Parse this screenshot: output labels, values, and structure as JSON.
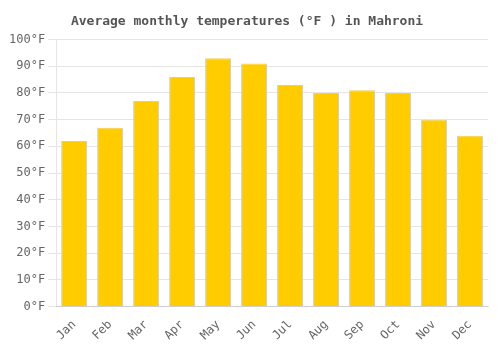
{
  "chart_data": {
    "type": "bar",
    "title": "Average monthly temperatures (°F ) in Mahroni",
    "categories": [
      "Jan",
      "Feb",
      "Mar",
      "Apr",
      "May",
      "Jun",
      "Jul",
      "Aug",
      "Sep",
      "Oct",
      "Nov",
      "Dec"
    ],
    "values": [
      62,
      67,
      77,
      86,
      93,
      91,
      83,
      80,
      81,
      80,
      70,
      64
    ],
    "color": "#FFCC00",
    "ylim": [
      0,
      100
    ],
    "yticks": [
      {
        "value": 0,
        "label": "0°F"
      },
      {
        "value": 10,
        "label": "10°F"
      },
      {
        "value": 20,
        "label": "20°F"
      },
      {
        "value": 30,
        "label": "30°F"
      },
      {
        "value": 40,
        "label": "40°F"
      },
      {
        "value": 50,
        "label": "50°F"
      },
      {
        "value": 60,
        "label": "60°F"
      },
      {
        "value": 70,
        "label": "70°F"
      },
      {
        "value": 80,
        "label": "80°F"
      },
      {
        "value": 90,
        "label": "90°F"
      },
      {
        "value": 100,
        "label": "100°F"
      }
    ],
    "grid": true
  }
}
